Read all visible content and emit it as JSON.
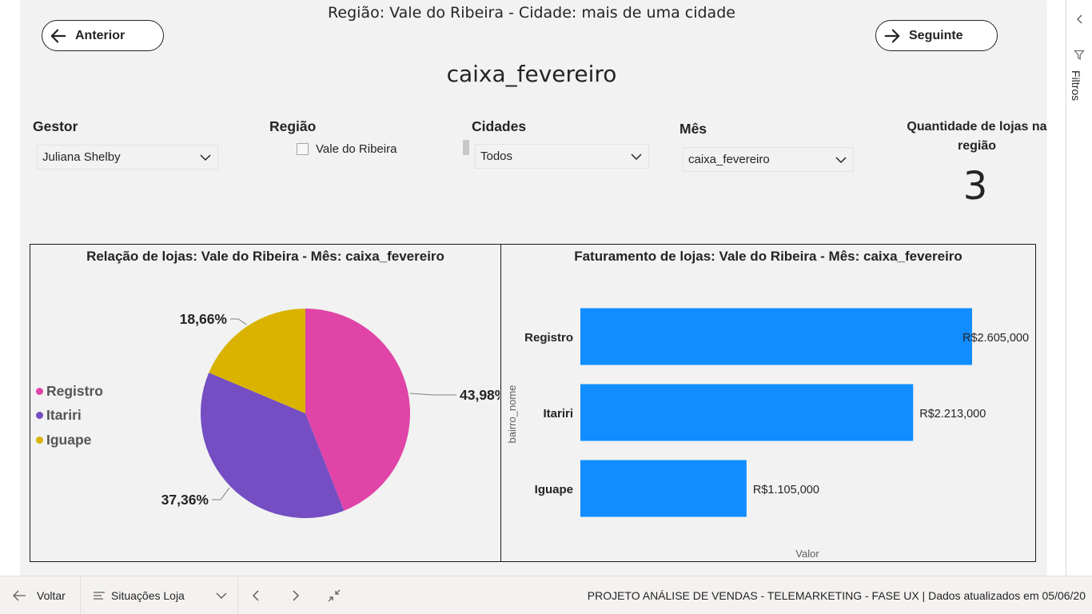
{
  "page": {
    "heading": "Região: Vale do Ribeira - Cidade: mais de uma cidade",
    "title": "caixa_fevereiro"
  },
  "nav": {
    "prev_label": "Anterior",
    "next_label": "Seguinte"
  },
  "slicers": {
    "gestor": {
      "label": "Gestor",
      "value": "Juliana Shelby"
    },
    "regiao": {
      "label": "Região",
      "item": "Vale do Ribeira"
    },
    "cidades": {
      "label": "Cidades",
      "value": "Todos"
    },
    "mes": {
      "label": "Mês",
      "value": "caixa_fevereiro"
    }
  },
  "kpi": {
    "label": "Quantidade de lojas na região",
    "value": "3"
  },
  "colors": {
    "registro": "#e044a7",
    "itariri": "#744ec2",
    "iguape": "#d9b300",
    "bar": "#118dff"
  },
  "chart_data": [
    {
      "type": "pie",
      "title": "Relação de lojas: Vale do Ribeira - Mês: caixa_fevereiro",
      "categories": [
        "Registro",
        "Itariri",
        "Iguape"
      ],
      "values": [
        43.98,
        37.36,
        18.66
      ],
      "data_labels": [
        "43,98%",
        "37,36%",
        "18,66%"
      ],
      "legend": "left",
      "legend_entries": [
        "Registro",
        "Itariri",
        "Iguape"
      ]
    },
    {
      "type": "bar",
      "orientation": "horizontal",
      "title": "Faturamento de lojas: Vale do Ribeira - Mês: caixa_fevereiro",
      "categories": [
        "Registro",
        "Itariri",
        "Iguape"
      ],
      "values": [
        2605,
        2213,
        1105
      ],
      "data_labels": [
        "R$2.605,000",
        "R$2.213,000",
        "R$1.105,000"
      ],
      "xlabel": "Valor",
      "ylabel": "bairro_nome",
      "xlim": [
        0,
        2700
      ],
      "grid": false
    }
  ],
  "filters_pane": {
    "label": "Filtros"
  },
  "bottom_bar": {
    "back_label": "Voltar",
    "page_label": "Situações Loja",
    "footer_text": "PROJETO ANÁLISE DE VENDAS - TELEMARKETING - FASE UX  |  Dados atualizados em 05/06/20"
  },
  "icons": {
    "prev": "arrow-left-icon",
    "next": "arrow-right-icon",
    "dropdown": "chevron-down-icon",
    "filter": "filter-icon",
    "collapse": "chevron-left-icon",
    "page_list": "list-icon",
    "fit": "fit-to-page-icon"
  }
}
